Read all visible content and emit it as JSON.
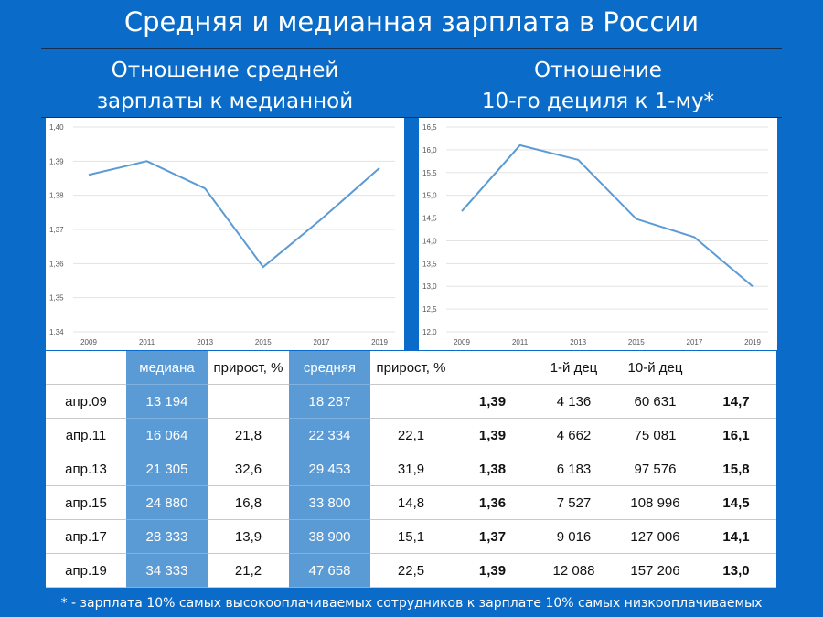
{
  "title": "Средняя и медианная зарплата в России",
  "subtitles": {
    "left": [
      "Отношение средней",
      "зарплаты к медианной"
    ],
    "right": [
      "Отношение",
      "10-го дециля к 1-му*"
    ]
  },
  "chart_data": [
    {
      "type": "line",
      "x": [
        "2009",
        "2011",
        "2013",
        "2015",
        "2017",
        "2019"
      ],
      "ylim": [
        1.34,
        1.4
      ],
      "yticks": [
        "1,34",
        "1,35",
        "1,36",
        "1,37",
        "1,38",
        "1,39",
        "1,40"
      ],
      "series": [
        {
          "values": [
            1.386,
            1.39,
            1.382,
            1.359,
            1.373,
            1.388
          ]
        }
      ],
      "color": "#5b9bd5"
    },
    {
      "type": "line",
      "x": [
        "2009",
        "2011",
        "2013",
        "2015",
        "2017",
        "2019"
      ],
      "ylim": [
        12.0,
        16.5
      ],
      "yticks": [
        "12,0",
        "12,5",
        "13,0",
        "13,5",
        "14,0",
        "14,5",
        "15,0",
        "15,5",
        "16,0",
        "16,5"
      ],
      "series": [
        {
          "values": [
            14.65,
            16.1,
            15.78,
            14.48,
            14.08,
            13.0
          ]
        }
      ],
      "color": "#5b9bd5"
    }
  ],
  "table": {
    "headers": [
      "",
      "медиана",
      "прирост, %",
      "средняя",
      "прирост, %",
      "",
      "1-й дец",
      "10-й дец",
      ""
    ],
    "rows": [
      [
        "апр.09",
        "13 194",
        "",
        "18 287",
        "",
        "1,39",
        "4 136",
        "60 631",
        "14,7"
      ],
      [
        "апр.11",
        "16 064",
        "21,8",
        "22 334",
        "22,1",
        "1,39",
        "4 662",
        "75 081",
        "16,1"
      ],
      [
        "апр.13",
        "21 305",
        "32,6",
        "29 453",
        "31,9",
        "1,38",
        "6 183",
        "97 576",
        "15,8"
      ],
      [
        "апр.15",
        "24 880",
        "16,8",
        "33 800",
        "14,8",
        "1,36",
        "7 527",
        "108 996",
        "14,5"
      ],
      [
        "апр.17",
        "28 333",
        "13,9",
        "38 900",
        "15,1",
        "1,37",
        "9 016",
        "127 006",
        "14,1"
      ],
      [
        "апр.19",
        "34 333",
        "21,2",
        "47 658",
        "22,5",
        "1,39",
        "12 088",
        "157 206",
        "13,0"
      ]
    ]
  },
  "footnote": "* - зарплата 10% самых высокооплачиваемых сотрудников к зарплате 10% самых  низкооплачиваемых",
  "colors": {
    "background": "#0a6cc8",
    "highlight": "#5b9bd5"
  }
}
